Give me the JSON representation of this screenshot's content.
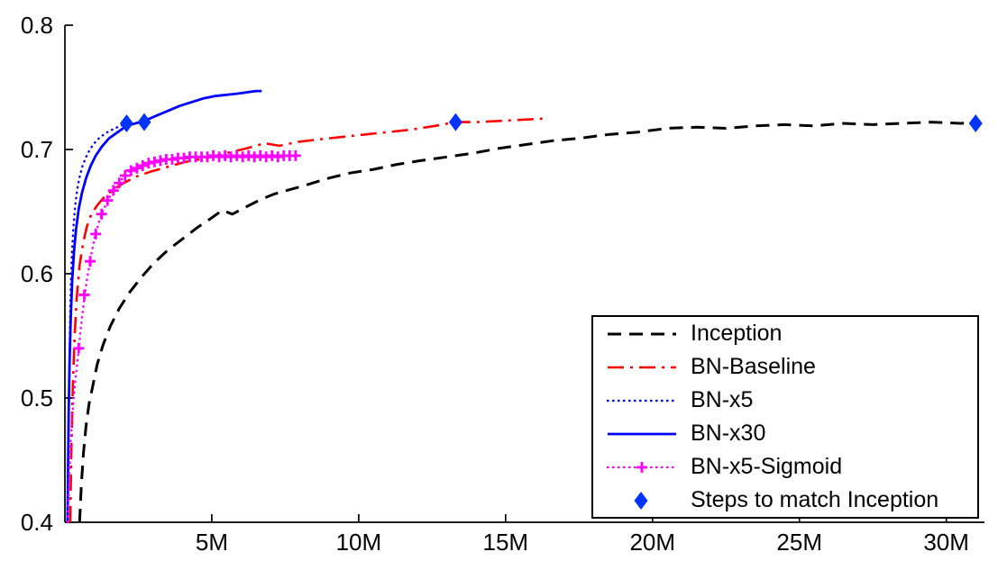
{
  "figure": {
    "background": "#ffffff",
    "axis_color": "#000000"
  },
  "chart_data": {
    "type": "line",
    "title": "",
    "xlabel": "",
    "ylabel": "",
    "xlim": [
      0,
      31.3
    ],
    "ylim": [
      0.4,
      0.8
    ],
    "grid": false,
    "legend_position": "lower right",
    "x_ticks": [
      {
        "value": 5,
        "label": "5M"
      },
      {
        "value": 10,
        "label": "10M"
      },
      {
        "value": 15,
        "label": "15M"
      },
      {
        "value": 20,
        "label": "20M"
      },
      {
        "value": 25,
        "label": "25M"
      },
      {
        "value": 30,
        "label": "30M"
      }
    ],
    "y_ticks": [
      {
        "value": 0.4,
        "label": "0.4"
      },
      {
        "value": 0.5,
        "label": "0.5"
      },
      {
        "value": 0.6,
        "label": "0.6"
      },
      {
        "value": 0.7,
        "label": "0.7"
      },
      {
        "value": 0.8,
        "label": "0.8"
      }
    ],
    "series": [
      {
        "name": "Inception",
        "color": "#000000",
        "style": "dashed",
        "width": 3,
        "points": [
          [
            0.5,
            0.4
          ],
          [
            0.56,
            0.43
          ],
          [
            0.63,
            0.455
          ],
          [
            0.72,
            0.478
          ],
          [
            0.82,
            0.495
          ],
          [
            0.95,
            0.51
          ],
          [
            1.1,
            0.527
          ],
          [
            1.3,
            0.543
          ],
          [
            1.55,
            0.558
          ],
          [
            1.85,
            0.572
          ],
          [
            2.2,
            0.585
          ],
          [
            2.6,
            0.597
          ],
          [
            3.0,
            0.608
          ],
          [
            3.5,
            0.619
          ],
          [
            4.0,
            0.628
          ],
          [
            4.5,
            0.637
          ],
          [
            5.0,
            0.645
          ],
          [
            5.35,
            0.651
          ],
          [
            5.7,
            0.648
          ],
          [
            6.1,
            0.653
          ],
          [
            6.6,
            0.659
          ],
          [
            7.1,
            0.664
          ],
          [
            7.7,
            0.668
          ],
          [
            8.3,
            0.672
          ],
          [
            9.0,
            0.677
          ],
          [
            9.7,
            0.681
          ],
          [
            10.5,
            0.684
          ],
          [
            11.3,
            0.688
          ],
          [
            12.1,
            0.691
          ],
          [
            13.0,
            0.694
          ],
          [
            13.9,
            0.697
          ],
          [
            14.8,
            0.701
          ],
          [
            15.7,
            0.704
          ],
          [
            16.6,
            0.707
          ],
          [
            17.5,
            0.709
          ],
          [
            18.5,
            0.712
          ],
          [
            19.5,
            0.714
          ],
          [
            20.5,
            0.717
          ],
          [
            21.5,
            0.718
          ],
          [
            22.5,
            0.717
          ],
          [
            23.5,
            0.719
          ],
          [
            24.5,
            0.72
          ],
          [
            25.5,
            0.719
          ],
          [
            26.5,
            0.721
          ],
          [
            27.5,
            0.72
          ],
          [
            28.5,
            0.721
          ],
          [
            29.5,
            0.722
          ],
          [
            30.5,
            0.721
          ],
          [
            31.0,
            0.722
          ]
        ]
      },
      {
        "name": "BN-Baseline",
        "color": "#ff0000",
        "style": "dashdot",
        "width": 2.6,
        "points": [
          [
            0.18,
            0.4
          ],
          [
            0.22,
            0.46
          ],
          [
            0.27,
            0.51
          ],
          [
            0.33,
            0.55
          ],
          [
            0.4,
            0.58
          ],
          [
            0.5,
            0.607
          ],
          [
            0.62,
            0.625
          ],
          [
            0.75,
            0.638
          ],
          [
            0.9,
            0.648
          ],
          [
            1.1,
            0.655
          ],
          [
            1.35,
            0.662
          ],
          [
            1.65,
            0.668
          ],
          [
            2.0,
            0.673
          ],
          [
            2.4,
            0.678
          ],
          [
            2.9,
            0.682
          ],
          [
            3.5,
            0.686
          ],
          [
            4.1,
            0.69
          ],
          [
            4.8,
            0.693
          ],
          [
            5.5,
            0.697
          ],
          [
            6.2,
            0.701
          ],
          [
            6.8,
            0.705
          ],
          [
            7.3,
            0.703
          ],
          [
            7.9,
            0.706
          ],
          [
            8.6,
            0.708
          ],
          [
            9.4,
            0.71
          ],
          [
            10.2,
            0.712
          ],
          [
            11.0,
            0.714
          ],
          [
            11.8,
            0.716
          ],
          [
            12.6,
            0.719
          ],
          [
            13.3,
            0.722
          ],
          [
            14.0,
            0.722
          ],
          [
            14.8,
            0.723
          ],
          [
            15.6,
            0.724
          ],
          [
            16.4,
            0.725
          ]
        ]
      },
      {
        "name": "BN-x5",
        "color": "#0000ff",
        "style": "dotted",
        "width": 2.4,
        "points": [
          [
            0.1,
            0.4
          ],
          [
            0.12,
            0.46
          ],
          [
            0.14,
            0.51
          ],
          [
            0.17,
            0.555
          ],
          [
            0.2,
            0.59
          ],
          [
            0.24,
            0.617
          ],
          [
            0.29,
            0.638
          ],
          [
            0.35,
            0.655
          ],
          [
            0.42,
            0.668
          ],
          [
            0.5,
            0.678
          ],
          [
            0.6,
            0.687
          ],
          [
            0.72,
            0.694
          ],
          [
            0.85,
            0.7
          ],
          [
            1.0,
            0.705
          ],
          [
            1.2,
            0.71
          ],
          [
            1.45,
            0.714
          ],
          [
            1.7,
            0.717
          ],
          [
            2.0,
            0.72
          ],
          [
            2.25,
            0.721
          ]
        ]
      },
      {
        "name": "BN-x30",
        "color": "#0000ff",
        "style": "solid",
        "width": 2.8,
        "points": [
          [
            0.09,
            0.4
          ],
          [
            0.11,
            0.45
          ],
          [
            0.13,
            0.49
          ],
          [
            0.16,
            0.53
          ],
          [
            0.2,
            0.565
          ],
          [
            0.25,
            0.595
          ],
          [
            0.31,
            0.618
          ],
          [
            0.38,
            0.636
          ],
          [
            0.47,
            0.652
          ],
          [
            0.58,
            0.665
          ],
          [
            0.72,
            0.677
          ],
          [
            0.88,
            0.687
          ],
          [
            1.05,
            0.695
          ],
          [
            1.25,
            0.702
          ],
          [
            1.5,
            0.709
          ],
          [
            1.8,
            0.714
          ],
          [
            2.1,
            0.719
          ],
          [
            2.4,
            0.721
          ],
          [
            2.7,
            0.723
          ],
          [
            3.1,
            0.727
          ],
          [
            3.5,
            0.731
          ],
          [
            3.9,
            0.735
          ],
          [
            4.3,
            0.738
          ],
          [
            4.7,
            0.741
          ],
          [
            5.1,
            0.743
          ],
          [
            5.5,
            0.744
          ],
          [
            5.9,
            0.745
          ],
          [
            6.2,
            0.746
          ],
          [
            6.5,
            0.747
          ],
          [
            6.7,
            0.747
          ]
        ]
      },
      {
        "name": "BN-x5-Sigmoid",
        "color": "#ff00ff",
        "style": "dotted",
        "width": 2.4,
        "marker": "plus",
        "points": [
          [
            0.1,
            0.4
          ],
          [
            0.15,
            0.435
          ],
          [
            0.2,
            0.465
          ],
          [
            0.28,
            0.495
          ],
          [
            0.36,
            0.515
          ],
          [
            0.45,
            0.535
          ],
          [
            0.55,
            0.558
          ],
          [
            0.65,
            0.578
          ],
          [
            0.75,
            0.595
          ],
          [
            0.87,
            0.612
          ],
          [
            1.0,
            0.628
          ],
          [
            1.15,
            0.641
          ],
          [
            1.3,
            0.651
          ],
          [
            1.5,
            0.661
          ],
          [
            1.7,
            0.669
          ],
          [
            1.9,
            0.675
          ],
          [
            2.1,
            0.68
          ],
          [
            2.3,
            0.684
          ],
          [
            2.55,
            0.687
          ],
          [
            2.8,
            0.689
          ],
          [
            3.05,
            0.69
          ],
          [
            3.3,
            0.691
          ],
          [
            3.55,
            0.692
          ],
          [
            3.8,
            0.693
          ],
          [
            4.05,
            0.693
          ],
          [
            4.3,
            0.694
          ],
          [
            4.55,
            0.694
          ],
          [
            4.8,
            0.694
          ],
          [
            5.05,
            0.695
          ],
          [
            5.3,
            0.694
          ],
          [
            5.55,
            0.695
          ],
          [
            5.8,
            0.694
          ],
          [
            6.05,
            0.695
          ],
          [
            6.3,
            0.694
          ],
          [
            6.55,
            0.695
          ],
          [
            6.8,
            0.694
          ],
          [
            7.05,
            0.695
          ],
          [
            7.3,
            0.695
          ],
          [
            7.55,
            0.695
          ],
          [
            7.8,
            0.695
          ]
        ],
        "marker_points": [
          [
            0.47,
            0.54
          ],
          [
            0.66,
            0.583
          ],
          [
            0.86,
            0.61
          ],
          [
            1.05,
            0.632
          ],
          [
            1.25,
            0.648
          ],
          [
            1.45,
            0.659
          ],
          [
            1.65,
            0.667
          ],
          [
            1.85,
            0.673
          ],
          [
            2.05,
            0.679
          ],
          [
            2.25,
            0.683
          ],
          [
            2.45,
            0.685
          ],
          [
            2.65,
            0.687
          ],
          [
            2.85,
            0.689
          ],
          [
            3.05,
            0.69
          ],
          [
            3.25,
            0.691
          ],
          [
            3.45,
            0.692
          ],
          [
            3.65,
            0.692
          ],
          [
            3.85,
            0.693
          ],
          [
            4.05,
            0.693
          ],
          [
            4.25,
            0.694
          ],
          [
            4.45,
            0.694
          ],
          [
            4.65,
            0.694
          ],
          [
            4.85,
            0.694
          ],
          [
            5.05,
            0.695
          ],
          [
            5.25,
            0.694
          ],
          [
            5.45,
            0.695
          ],
          [
            5.65,
            0.694
          ],
          [
            5.85,
            0.695
          ],
          [
            6.05,
            0.694
          ],
          [
            6.25,
            0.695
          ],
          [
            6.45,
            0.694
          ],
          [
            6.65,
            0.695
          ],
          [
            6.85,
            0.694
          ],
          [
            7.05,
            0.695
          ],
          [
            7.25,
            0.694
          ],
          [
            7.45,
            0.695
          ],
          [
            7.65,
            0.695
          ],
          [
            7.85,
            0.695
          ]
        ]
      }
    ],
    "match_markers": {
      "name": "Steps to match Inception",
      "shape": "diamond",
      "color": "#0033ff",
      "points": [
        [
          2.1,
          0.721
        ],
        [
          2.7,
          0.722
        ],
        [
          13.3,
          0.722
        ],
        [
          31.0,
          0.721
        ]
      ]
    }
  }
}
